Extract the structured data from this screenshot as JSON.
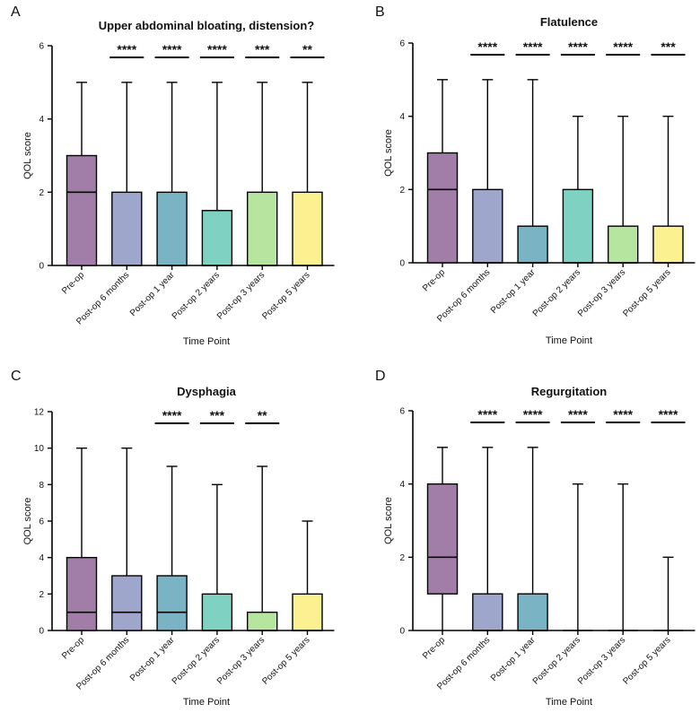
{
  "chart_data": [
    {
      "type": "box",
      "panel_label": "A",
      "title": "Upper abdominal bloating, distension?",
      "xlabel": "Time Point",
      "ylabel": "QOL score",
      "ylim": [
        0,
        6
      ],
      "yticks": [
        "0",
        "2",
        "4",
        "6"
      ],
      "categories": [
        "Pre-op",
        "Post-op 6 months",
        "Post-op 1 year",
        "Post-op 2 years",
        "Post-op 3 years",
        "Post-op 5 years"
      ],
      "boxes": [
        {
          "min": 0,
          "q1": 0,
          "median": 2,
          "q3": 3,
          "max": 5
        },
        {
          "min": 0,
          "q1": 0,
          "median": 0,
          "q3": 2,
          "max": 5
        },
        {
          "min": 0,
          "q1": 0,
          "median": 0,
          "q3": 2,
          "max": 5
        },
        {
          "min": 0,
          "q1": 0,
          "median": 0,
          "q3": 1.5,
          "max": 5
        },
        {
          "min": 0,
          "q1": 0,
          "median": 0,
          "q3": 2,
          "max": 5
        },
        {
          "min": 0,
          "q1": 0,
          "median": 0,
          "q3": 2,
          "max": 5
        }
      ],
      "significance": [
        "",
        "****",
        "****",
        "****",
        "***",
        "**"
      ]
    },
    {
      "type": "box",
      "panel_label": "B",
      "title": "Flatulence",
      "xlabel": "Time Point",
      "ylabel": "QOL score",
      "ylim": [
        0,
        6
      ],
      "yticks": [
        "0",
        "2",
        "4",
        "6"
      ],
      "categories": [
        "Pre-op",
        "Post-op 6 months",
        "Post-op 1 year",
        "Post-op 2 years",
        "Post-op 3 years",
        "Post-op 5 years"
      ],
      "boxes": [
        {
          "min": 0,
          "q1": 0,
          "median": 2,
          "q3": 3,
          "max": 5
        },
        {
          "min": 0,
          "q1": 0,
          "median": 0,
          "q3": 2,
          "max": 5
        },
        {
          "min": 0,
          "q1": 0,
          "median": 0,
          "q3": 1,
          "max": 5
        },
        {
          "min": 0,
          "q1": 0,
          "median": 0,
          "q3": 2,
          "max": 4
        },
        {
          "min": 0,
          "q1": 0,
          "median": 0,
          "q3": 1,
          "max": 4
        },
        {
          "min": 0,
          "q1": 0,
          "median": 0,
          "q3": 1,
          "max": 4
        }
      ],
      "significance": [
        "",
        "****",
        "****",
        "****",
        "****",
        "***"
      ]
    },
    {
      "type": "box",
      "panel_label": "C",
      "title": "Dysphagia",
      "xlabel": "Time Point",
      "ylabel": "QOL score",
      "ylim": [
        0,
        12
      ],
      "yticks": [
        "0",
        "2",
        "4",
        "6",
        "8",
        "10",
        "12"
      ],
      "categories": [
        "Pre-op",
        "Post-op 6 months",
        "Post-op 1 year",
        "Post-op 2 years",
        "Post-op 3 years",
        "Post-op 5 years"
      ],
      "boxes": [
        {
          "min": 0,
          "q1": 0,
          "median": 1,
          "q3": 4,
          "max": 10
        },
        {
          "min": 0,
          "q1": 0,
          "median": 1,
          "q3": 3,
          "max": 10
        },
        {
          "min": 0,
          "q1": 0,
          "median": 1,
          "q3": 3,
          "max": 9
        },
        {
          "min": 0,
          "q1": 0,
          "median": 0,
          "q3": 2,
          "max": 8
        },
        {
          "min": 0,
          "q1": 0,
          "median": 0,
          "q3": 1,
          "max": 9
        },
        {
          "min": 0,
          "q1": 0,
          "median": 0,
          "q3": 2,
          "max": 6
        }
      ],
      "significance": [
        "",
        "",
        "****",
        "***",
        "**",
        ""
      ]
    },
    {
      "type": "box",
      "panel_label": "D",
      "title": "Regurgitation",
      "xlabel": "Time Point",
      "ylabel": "QOL score",
      "ylim": [
        0,
        6
      ],
      "yticks": [
        "0",
        "2",
        "4",
        "6"
      ],
      "categories": [
        "Pre-op",
        "Post-op 6 months",
        "Post-op 1 year",
        "Post-op 2 years",
        "Post-op 3 years",
        "Post-op 5 years"
      ],
      "boxes": [
        {
          "min": 0,
          "q1": 1,
          "median": 2,
          "q3": 4,
          "max": 5
        },
        {
          "min": 0,
          "q1": 0,
          "median": 0,
          "q3": 1,
          "max": 5
        },
        {
          "min": 0,
          "q1": 0,
          "median": 0,
          "q3": 1,
          "max": 5
        },
        {
          "min": 0,
          "q1": 0,
          "median": 0,
          "q3": 0,
          "max": 4
        },
        {
          "min": 0,
          "q1": 0,
          "median": 0,
          "q3": 0,
          "max": 4
        },
        {
          "min": 0,
          "q1": 0,
          "median": 0,
          "q3": 0,
          "max": 2
        }
      ],
      "significance": [
        "",
        "****",
        "****",
        "****",
        "****",
        "****"
      ]
    }
  ],
  "colors": [
    "#a07ea8",
    "#9ea6cb",
    "#7ab3c4",
    "#7fd1c1",
    "#b6e5a0",
    "#fbf191"
  ]
}
